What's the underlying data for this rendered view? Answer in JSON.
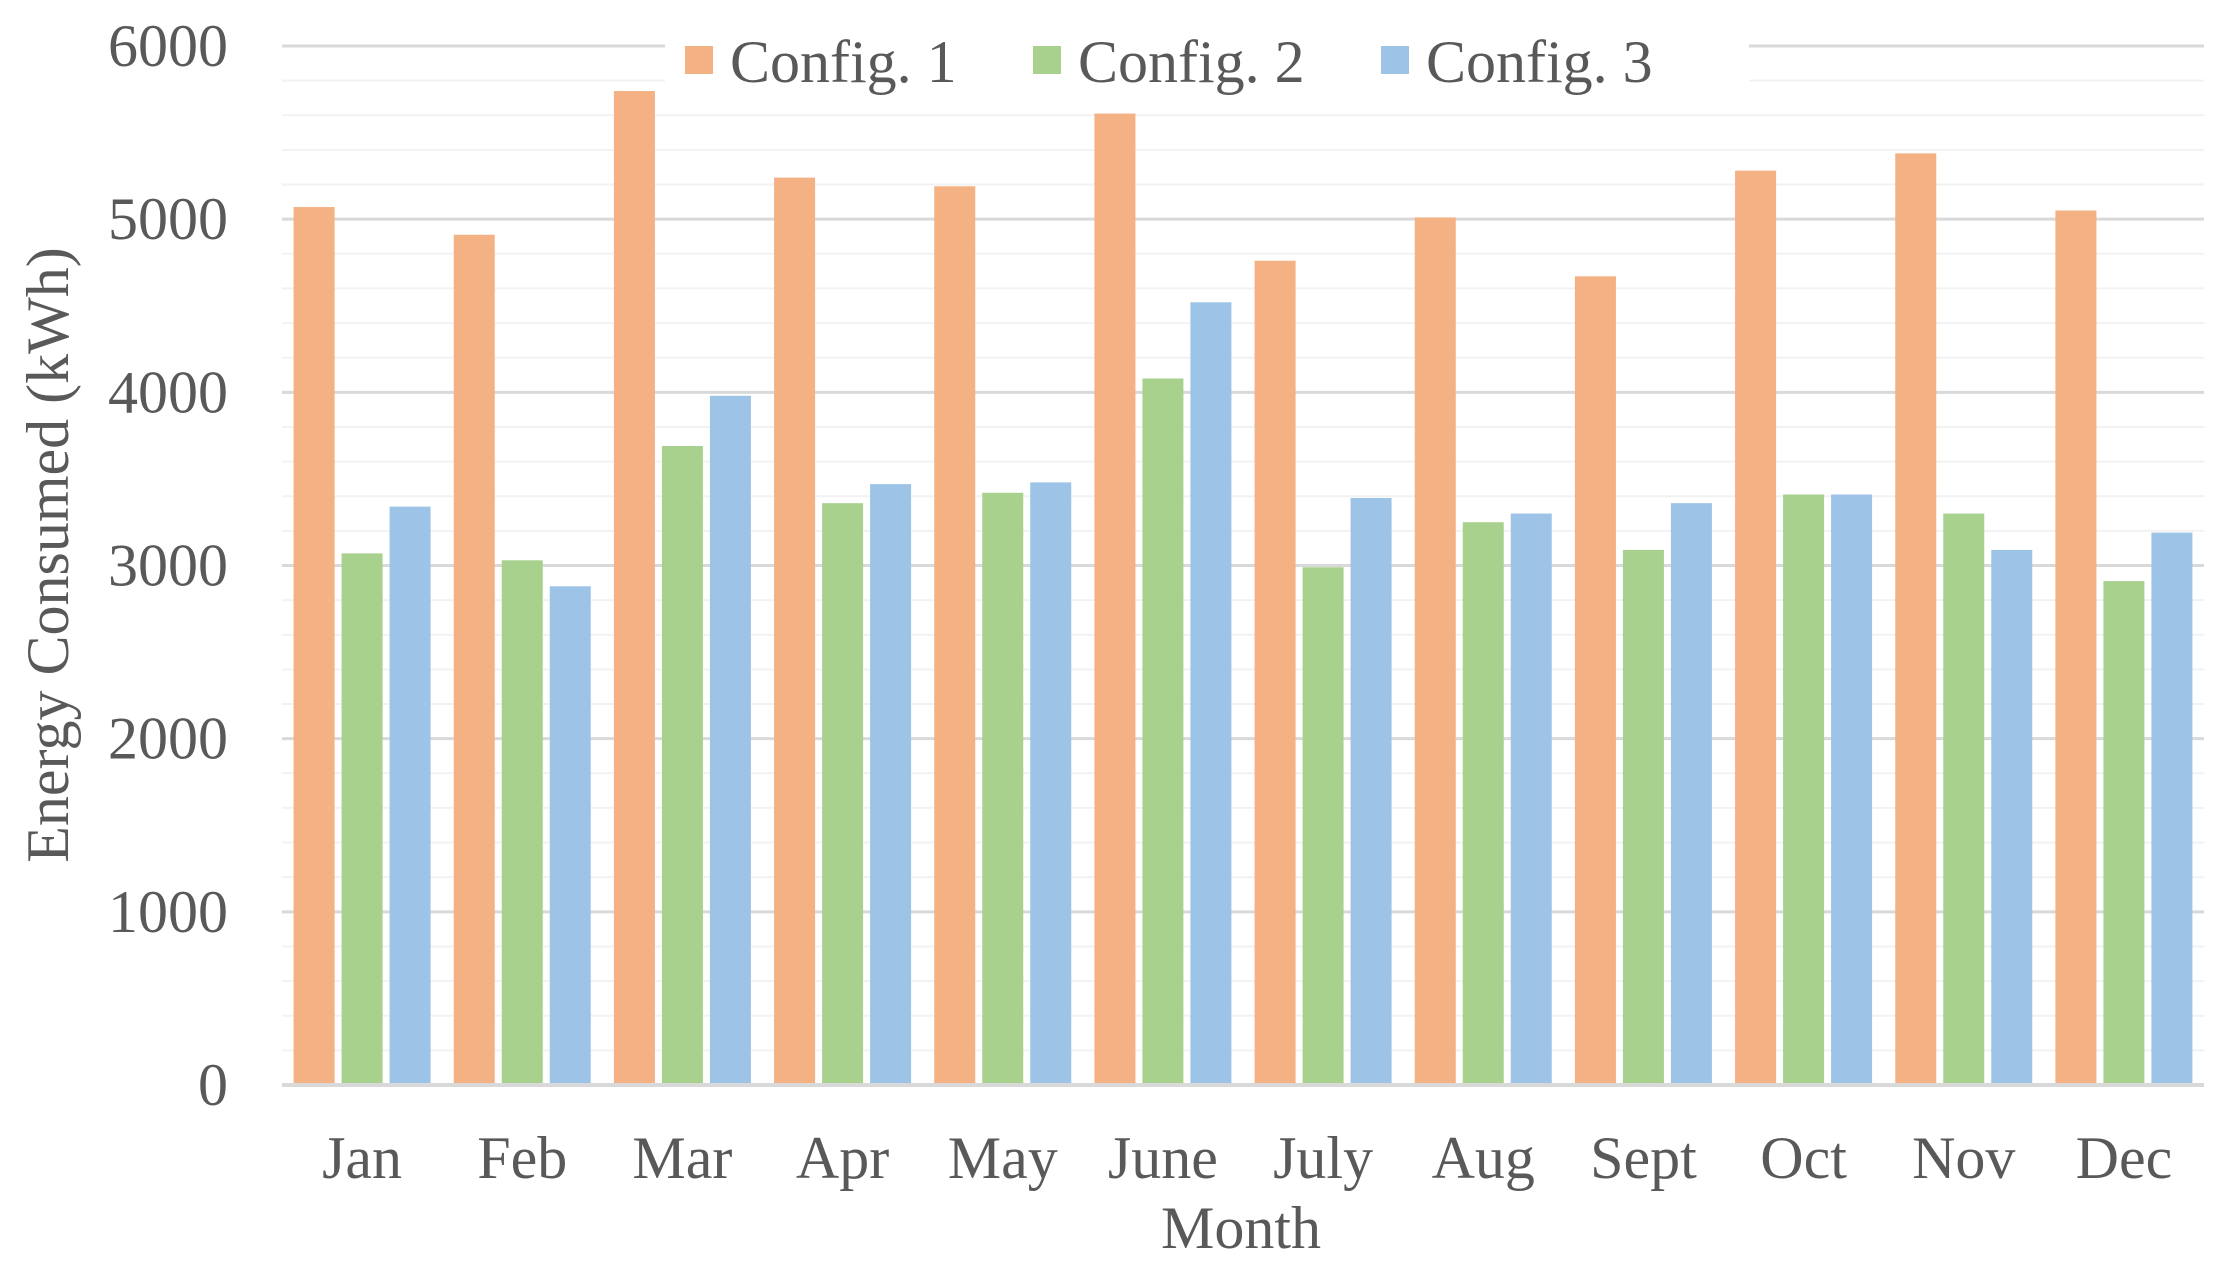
{
  "chart_data": {
    "type": "bar",
    "title": "",
    "xlabel": "Month",
    "ylabel": "Energy Consumed (kWh)",
    "ylim": [
      0,
      6000
    ],
    "yticks": [
      0,
      1000,
      2000,
      3000,
      4000,
      5000,
      6000
    ],
    "ytick_labels": [
      "0",
      "1000",
      "2000",
      "3000",
      "4000",
      "5000",
      "6000"
    ],
    "minor_gridlines": true,
    "legend_position": "top-center",
    "categories": [
      "Jan",
      "Feb",
      "Mar",
      "Apr",
      "May",
      "June",
      "July",
      "Aug",
      "Sept",
      "Oct",
      "Nov",
      "Dec"
    ],
    "series": [
      {
        "name": "Config. 1",
        "color": "#F4B183",
        "values": [
          5070,
          4910,
          5740,
          5240,
          5190,
          5610,
          4760,
          5010,
          4670,
          5280,
          5380,
          5050
        ]
      },
      {
        "name": "Config. 2",
        "color": "#A9D18E",
        "values": [
          3070,
          3030,
          3690,
          3360,
          3420,
          4080,
          2990,
          3250,
          3090,
          3410,
          3300,
          2910
        ]
      },
      {
        "name": "Config. 3",
        "color": "#9DC3E6",
        "values": [
          3340,
          2880,
          3980,
          3470,
          3480,
          4520,
          3390,
          3300,
          3360,
          3410,
          3090,
          3190
        ]
      }
    ]
  },
  "colors": {
    "major_grid": "#D9D9D9",
    "minor_grid": "#F2F2F2",
    "text": "#595959",
    "axis": "#D9D9D9"
  }
}
